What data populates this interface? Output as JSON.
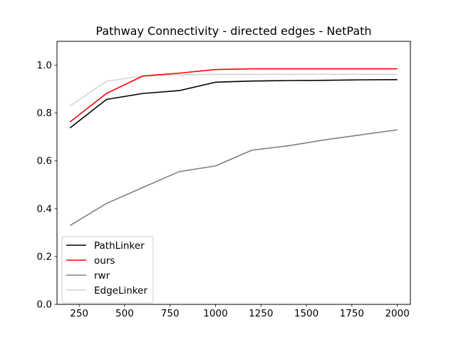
{
  "chart_data": {
    "type": "line",
    "title": "Pathway Connectivity - directed edges - NetPath",
    "xlabel": "",
    "ylabel": "",
    "xlim": [
      128,
      2072
    ],
    "ylim": [
      0,
      1.1
    ],
    "grid": false,
    "legend_position": "lower-left",
    "x_ticks": [
      250,
      500,
      750,
      1000,
      1250,
      1500,
      1750,
      2000
    ],
    "x_tick_labels": [
      "250",
      "500",
      "750",
      "1000",
      "1250",
      "1500",
      "1750",
      "2000"
    ],
    "y_ticks": [
      0,
      0.2,
      0.4,
      0.6,
      0.8,
      1.0
    ],
    "y_tick_labels": [
      "0.0",
      "0.2",
      "0.4",
      "0.6",
      "0.8",
      "1.0"
    ],
    "x": [
      200,
      400,
      600,
      800,
      1000,
      1200,
      1400,
      1600,
      1800,
      2000
    ],
    "series": [
      {
        "name": "PathLinker",
        "color": "#000000",
        "values": [
          0.738,
          0.857,
          0.882,
          0.894,
          0.929,
          0.934,
          0.936,
          0.937,
          0.939,
          0.94
        ]
      },
      {
        "name": "ours",
        "color": "#ff0000",
        "values": [
          0.763,
          0.882,
          0.955,
          0.967,
          0.982,
          0.985,
          0.985,
          0.985,
          0.985,
          0.985
        ]
      },
      {
        "name": "rwr",
        "color": "#808080",
        "values": [
          0.33,
          0.422,
          0.489,
          0.555,
          0.579,
          0.645,
          0.663,
          0.688,
          0.709,
          0.73
        ]
      },
      {
        "name": "EdgeLinker",
        "color": "#d3d3d3",
        "values": [
          0.83,
          0.933,
          0.955,
          0.96,
          0.962,
          0.962,
          0.962,
          0.962,
          0.962,
          0.962
        ]
      }
    ]
  }
}
